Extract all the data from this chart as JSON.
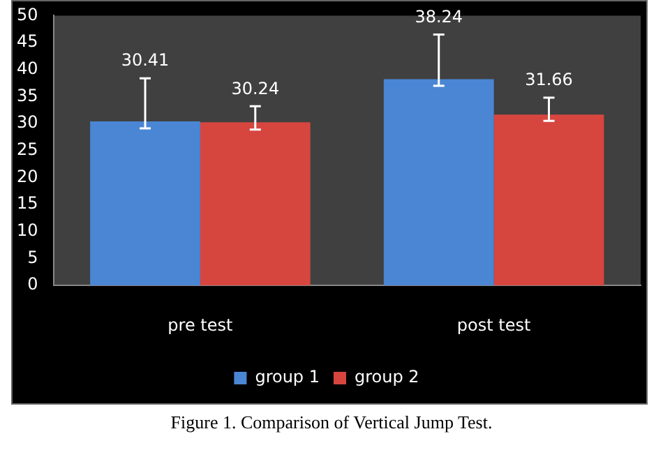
{
  "chart_data": {
    "type": "bar",
    "categories": [
      "pre test",
      "post test"
    ],
    "series": [
      {
        "name": "group 1",
        "color": "#4a86d4",
        "values": [
          30.41,
          38.24
        ],
        "errors": [
          [
            29.1,
            38.4
          ],
          [
            37.0,
            46.5
          ]
        ]
      },
      {
        "name": "group 2",
        "color": "#d6463f",
        "values": [
          30.24,
          31.66
        ],
        "errors": [
          [
            28.9,
            33.2
          ],
          [
            30.5,
            34.8
          ]
        ]
      }
    ],
    "ylim": [
      0,
      50
    ],
    "yticks": [
      0,
      5,
      10,
      15,
      20,
      25,
      30,
      35,
      40,
      45,
      50
    ],
    "grid": false,
    "legend": "bottom",
    "data_labels": true,
    "annotations": [
      "Figure 1. Comparison of Vertical Jump Test."
    ]
  }
}
